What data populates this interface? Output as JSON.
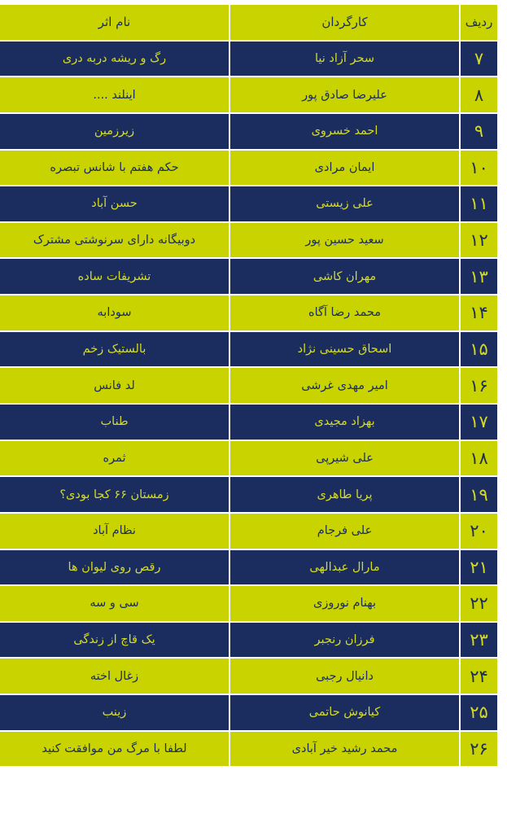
{
  "colors": {
    "yellow": "#c9d300",
    "navy": "#1b2d5e"
  },
  "header": {
    "rank": "ردیف",
    "director": "کارگردان",
    "title": "نام اثر"
  },
  "rows": [
    {
      "rank": "۷",
      "director": "سحر آزاد نیا",
      "title": "رگ و ریشه دربه دری"
    },
    {
      "rank": "۸",
      "director": "علیرضا صادق پور",
      "title": "اینلند ...."
    },
    {
      "rank": "۹",
      "director": "احمد خسروی",
      "title": "زیرزمین"
    },
    {
      "rank": "۱۰",
      "director": "ایمان مرادی",
      "title": "حکم هفتم با شانس تبصره"
    },
    {
      "rank": "۱۱",
      "director": "علی زیستی",
      "title": "حسن آباد"
    },
    {
      "rank": "۱۲",
      "director": "سعید حسین پور",
      "title": "دوبیگانه دارای سرنوشتی مشترک"
    },
    {
      "rank": "۱۳",
      "director": "مهران کاشی",
      "title": "تشریفات ساده"
    },
    {
      "rank": "۱۴",
      "director": "محمد رضا آگاه",
      "title": "سودابه"
    },
    {
      "rank": "۱۵",
      "director": "اسحاق حسینی نژاد",
      "title": "بالستیک زخم"
    },
    {
      "rank": "۱۶",
      "director": "امیر مهدی غرشی",
      "title": "لد فانس"
    },
    {
      "rank": "۱۷",
      "director": "بهزاد مجیدی",
      "title": "طناب"
    },
    {
      "rank": "۱۸",
      "director": "علی شیرپی",
      "title": "ثمره"
    },
    {
      "rank": "۱۹",
      "director": "پریا طاهری",
      "title": "زمستان ۶۶ کجا بودی؟"
    },
    {
      "rank": "۲۰",
      "director": "علی فرجام",
      "title": "نظام آباد"
    },
    {
      "rank": "۲۱",
      "director": "مارال عبدالهی",
      "title": "رقص روی لیوان ها"
    },
    {
      "rank": "۲۲",
      "director": "بهنام نوروزی",
      "title": "سی و سه"
    },
    {
      "rank": "۲۳",
      "director": "فرزان رنجبر",
      "title": "یک قاچ از زندگی"
    },
    {
      "rank": "۲۴",
      "director": "دانیال رجبی",
      "title": "زغال اخته"
    },
    {
      "rank": "۲۵",
      "director": "کیانوش حاتمی",
      "title": "زینب"
    },
    {
      "rank": "۲۶",
      "director": "محمد رشید خیر آبادی",
      "title": "لطفا با مرگ من موافقت کنید"
    }
  ]
}
